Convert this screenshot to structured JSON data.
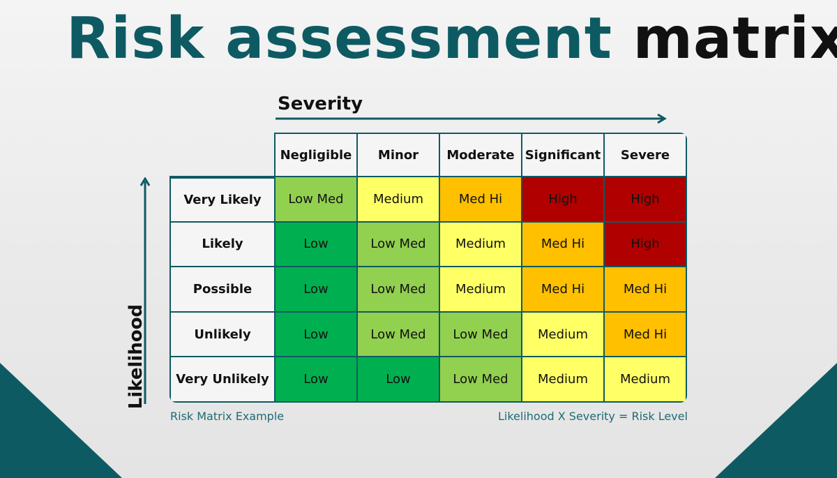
{
  "title": {
    "part1": "Risk assessment",
    "part2": "matrix"
  },
  "severity_label": "Severity",
  "likelihood_label": "Likelihood",
  "columns": [
    "Negligible",
    "Minor",
    "Moderate",
    "Significant",
    "Severe"
  ],
  "rows": [
    {
      "label": "Very Likely",
      "cells": [
        "Low Med",
        "Medium",
        "Med Hi",
        "High",
        "High"
      ]
    },
    {
      "label": "Likely",
      "cells": [
        "Low",
        "Low Med",
        "Medium",
        "Med Hi",
        "High"
      ]
    },
    {
      "label": "Possible",
      "cells": [
        "Low",
        "Low Med",
        "Medium",
        "Med Hi",
        "Med Hi"
      ]
    },
    {
      "label": "Unlikely",
      "cells": [
        "Low",
        "Low Med",
        "Low Med",
        "Medium",
        "Med Hi"
      ]
    },
    {
      "label": "Very Unlikely",
      "cells": [
        "Low",
        "Low",
        "Low Med",
        "Medium",
        "Medium"
      ]
    }
  ],
  "level_colors": {
    "Low": "#00b050",
    "Low Med": "#92d050",
    "Medium": "#ffff66",
    "Med Hi": "#ffc000",
    "High": "#b00000"
  },
  "footer": {
    "left": "Risk Matrix Example",
    "right": "Likelihood X Severity = Risk Level"
  },
  "theme": {
    "teal": "#0e5a63"
  }
}
